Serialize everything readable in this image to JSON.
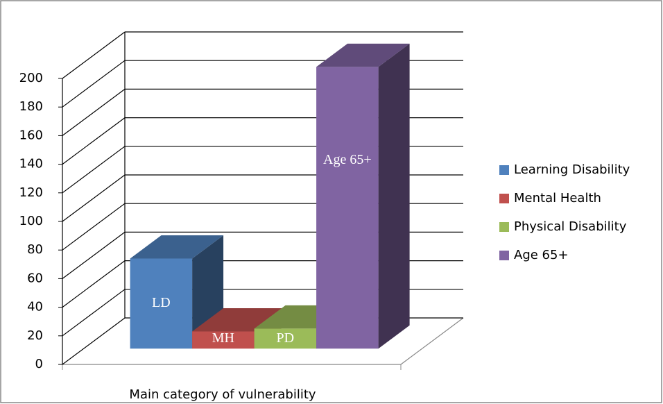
{
  "chart_data": {
    "type": "bar3d",
    "x_label": "Main category of vulnerability",
    "series": [
      {
        "name": "Learning Disability",
        "label": "LD",
        "color": "#4f81bd",
        "values": [
          63
        ]
      },
      {
        "name": "Mental Health",
        "label": "MH",
        "color": "#c0504d",
        "values": [
          12
        ]
      },
      {
        "name": "Physical Disability",
        "label": "PD",
        "color": "#9bbb59",
        "values": [
          14
        ]
      },
      {
        "name": "Age 65+",
        "label": "Age 65+",
        "color": "#8064a2",
        "values": [
          197
        ]
      }
    ],
    "ylim": [
      0,
      200
    ],
    "yticks": [
      0,
      20,
      40,
      60,
      80,
      100,
      120,
      140,
      160,
      180,
      200
    ],
    "grid": true,
    "legend": "right"
  }
}
